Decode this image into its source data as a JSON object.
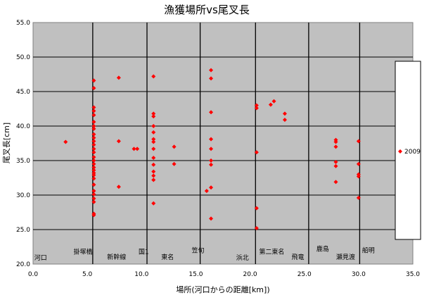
{
  "chart_data": {
    "type": "scatter",
    "title": "漁獲場所vs尾叉長",
    "xlabel": "場所(河口からの距離[km])",
    "ylabel": "尾叉長[cm]",
    "xlim": [
      0,
      35
    ],
    "ylim": [
      20,
      55
    ],
    "xticks": [
      "0.0",
      "5.0",
      "10.0",
      "15.0",
      "20.0",
      "25.0",
      "30.0",
      "35.0"
    ],
    "yticks": [
      "20.0",
      "25.0",
      "30.0",
      "35.0",
      "40.0",
      "45.0",
      "50.0",
      "55.0"
    ],
    "grid": "horizontal gridlines",
    "legend_position": "right",
    "series": [
      {
        "name": "2009",
        "color": "#ff0000",
        "marker": "diamond",
        "points": [
          [
            3.0,
            37.7
          ],
          [
            5.6,
            46.6
          ],
          [
            5.6,
            45.5
          ],
          [
            5.6,
            42.7
          ],
          [
            5.6,
            42.2
          ],
          [
            5.6,
            41.6
          ],
          [
            5.6,
            40.6
          ],
          [
            5.6,
            40.0
          ],
          [
            5.6,
            39.6
          ],
          [
            5.6,
            38.8
          ],
          [
            5.6,
            38.3
          ],
          [
            5.6,
            37.8
          ],
          [
            5.6,
            37.3
          ],
          [
            5.6,
            36.7
          ],
          [
            5.6,
            36.2
          ],
          [
            5.6,
            35.5
          ],
          [
            5.6,
            35.0
          ],
          [
            5.6,
            34.5
          ],
          [
            5.6,
            34.0
          ],
          [
            5.6,
            33.6
          ],
          [
            5.6,
            33.2
          ],
          [
            5.6,
            32.9
          ],
          [
            5.6,
            32.4
          ],
          [
            5.6,
            31.5
          ],
          [
            5.6,
            30.6
          ],
          [
            5.6,
            30.1
          ],
          [
            5.6,
            29.5
          ],
          [
            5.6,
            29.0
          ],
          [
            5.6,
            27.3
          ],
          [
            5.6,
            27.1
          ],
          [
            7.9,
            47.0
          ],
          [
            7.9,
            37.8
          ],
          [
            7.9,
            31.2
          ],
          [
            9.3,
            36.7
          ],
          [
            9.6,
            36.7
          ],
          [
            11.1,
            47.2
          ],
          [
            11.1,
            41.8
          ],
          [
            11.1,
            41.4
          ],
          [
            11.1,
            40.0
          ],
          [
            11.1,
            39.1
          ],
          [
            11.1,
            38.1
          ],
          [
            11.1,
            37.7
          ],
          [
            11.1,
            36.7
          ],
          [
            11.1,
            35.4
          ],
          [
            11.1,
            34.4
          ],
          [
            11.1,
            33.4
          ],
          [
            11.1,
            32.8
          ],
          [
            11.1,
            32.2
          ],
          [
            11.1,
            28.8
          ],
          [
            13.0,
            37.0
          ],
          [
            13.0,
            34.5
          ],
          [
            16.0,
            30.6
          ],
          [
            16.4,
            48.1
          ],
          [
            16.4,
            46.9
          ],
          [
            16.4,
            42.0
          ],
          [
            16.4,
            38.1
          ],
          [
            16.4,
            36.7
          ],
          [
            16.4,
            35.0
          ],
          [
            16.4,
            34.4
          ],
          [
            16.4,
            31.1
          ],
          [
            16.4,
            26.6
          ],
          [
            20.6,
            43.0
          ],
          [
            20.6,
            42.6
          ],
          [
            20.6,
            36.2
          ],
          [
            20.6,
            28.1
          ],
          [
            20.6,
            25.2
          ],
          [
            21.9,
            43.1
          ],
          [
            22.2,
            43.6
          ],
          [
            23.2,
            41.8
          ],
          [
            23.2,
            40.9
          ],
          [
            27.9,
            38.0
          ],
          [
            27.9,
            37.7
          ],
          [
            27.9,
            37.0
          ],
          [
            27.9,
            34.8
          ],
          [
            27.9,
            34.2
          ],
          [
            27.9,
            31.9
          ],
          [
            30.0,
            37.8
          ],
          [
            30.0,
            34.5
          ],
          [
            30.0,
            33.0
          ],
          [
            30.0,
            32.7
          ],
          [
            30.0,
            29.6
          ]
        ]
      }
    ],
    "location_lines": [
      5.5,
      10.5,
      15.4,
      20.5,
      25.4,
      30.1
    ],
    "location_labels": [
      {
        "text": "河口",
        "x": 0.7,
        "y": 20.6
      },
      {
        "text": "掛塚橋",
        "x": 4.6,
        "y": 21.5
      },
      {
        "text": "新幹線",
        "x": 7.7,
        "y": 20.7
      },
      {
        "text": "国1",
        "x": 10.2,
        "y": 21.5
      },
      {
        "text": "東名",
        "x": 12.4,
        "y": 20.7
      },
      {
        "text": "笠旬",
        "x": 15.2,
        "y": 21.7
      },
      {
        "text": "浜北",
        "x": 19.3,
        "y": 20.6
      },
      {
        "text": "第二東名",
        "x": 22.0,
        "y": 21.5
      },
      {
        "text": "飛竜",
        "x": 24.4,
        "y": 20.7
      },
      {
        "text": "鹿島",
        "x": 26.7,
        "y": 21.9
      },
      {
        "text": "瀬見渡",
        "x": 28.8,
        "y": 20.7
      },
      {
        "text": "船明",
        "x": 30.9,
        "y": 21.7
      }
    ]
  }
}
